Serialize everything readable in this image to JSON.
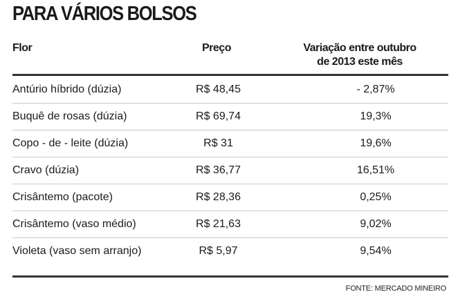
{
  "title": "PARA VÁRIOS BOLSOS",
  "columns": [
    "Flor",
    "Preço",
    "Variação entre outubro",
    "de 2013 este mês"
  ],
  "rows": [
    [
      "Antúrio híbrido (dúzia)",
      "R$ 48,45",
      "- 2,87%"
    ],
    [
      "Buquê de rosas (dúzia)",
      "R$ 69,74",
      "19,3%"
    ],
    [
      "Copo - de - leite (dúzia)",
      "R$ 31",
      "19,6%"
    ],
    [
      "Cravo (dúzia)",
      "R$ 36,77",
      "16,51%"
    ],
    [
      "Crisântemo (pacote)",
      "R$ 28,36",
      "0,25%"
    ],
    [
      "Crisântemo (vaso médio)",
      "R$ 21,63",
      "9,02%"
    ],
    [
      "Violeta (vaso sem arranjo)",
      "R$ 5,97",
      "9,54%"
    ]
  ],
  "source": "FONTE: MERCADO MINEIRO"
}
